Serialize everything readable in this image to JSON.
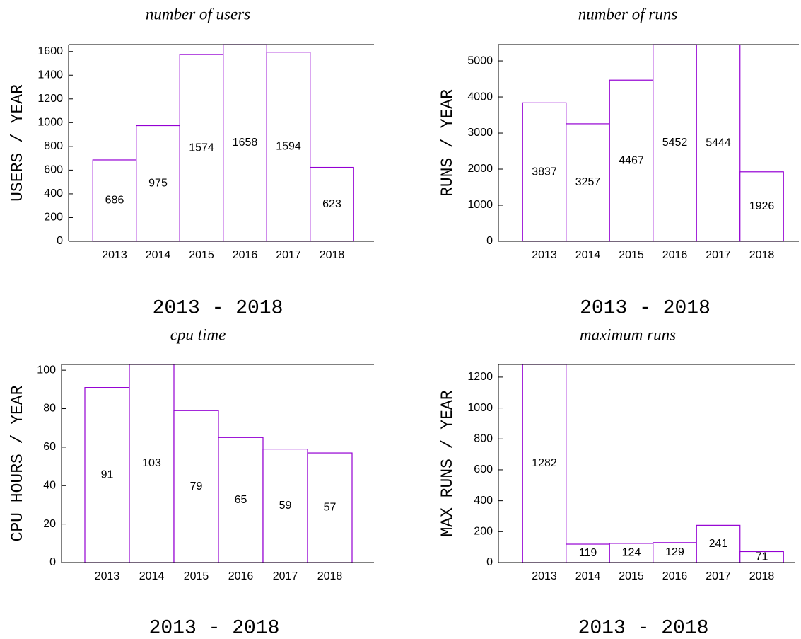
{
  "chart_data": [
    {
      "type": "bar",
      "title": "number of users",
      "ylabel": "USERS / YEAR",
      "xlabel": "2013 - 2018",
      "categories": [
        "2013",
        "2014",
        "2015",
        "2016",
        "2017",
        "2018"
      ],
      "values": [
        686,
        975,
        1574,
        1658,
        1594,
        623
      ],
      "color": "#9400d3",
      "ylim": [
        0,
        1658
      ],
      "yticks": [
        0,
        200,
        400,
        600,
        800,
        1000,
        1200,
        1400,
        1600
      ]
    },
    {
      "type": "bar",
      "title": "number of runs",
      "ylabel": "RUNS / YEAR",
      "xlabel": "2013 - 2018",
      "categories": [
        "2013",
        "2014",
        "2015",
        "2016",
        "2017",
        "2018"
      ],
      "values": [
        3837,
        3257,
        4467,
        5452,
        5444,
        1926
      ],
      "color": "#9400d3",
      "ylim": [
        0,
        5452
      ],
      "yticks": [
        0,
        1000,
        2000,
        3000,
        4000,
        5000
      ]
    },
    {
      "type": "bar",
      "title": "cpu time",
      "ylabel": "CPU HOURS / YEAR",
      "xlabel": "2013 - 2018",
      "categories": [
        "2013",
        "2014",
        "2015",
        "2016",
        "2017",
        "2018"
      ],
      "values": [
        91,
        103,
        79,
        65,
        59,
        57
      ],
      "color": "#9400d3",
      "ylim": [
        0,
        103
      ],
      "yticks": [
        0,
        20,
        40,
        60,
        80,
        100
      ]
    },
    {
      "type": "bar",
      "title": "maximum runs",
      "ylabel": "MAX RUNS / YEAR",
      "xlabel": "2013 - 2018",
      "categories": [
        "2013",
        "2014",
        "2015",
        "2016",
        "2017",
        "2018"
      ],
      "values": [
        1282,
        119,
        124,
        129,
        241,
        71
      ],
      "color": "#9400d3",
      "ylim": [
        0,
        1282
      ],
      "yticks": [
        0,
        200,
        400,
        600,
        800,
        1000,
        1200
      ]
    }
  ]
}
